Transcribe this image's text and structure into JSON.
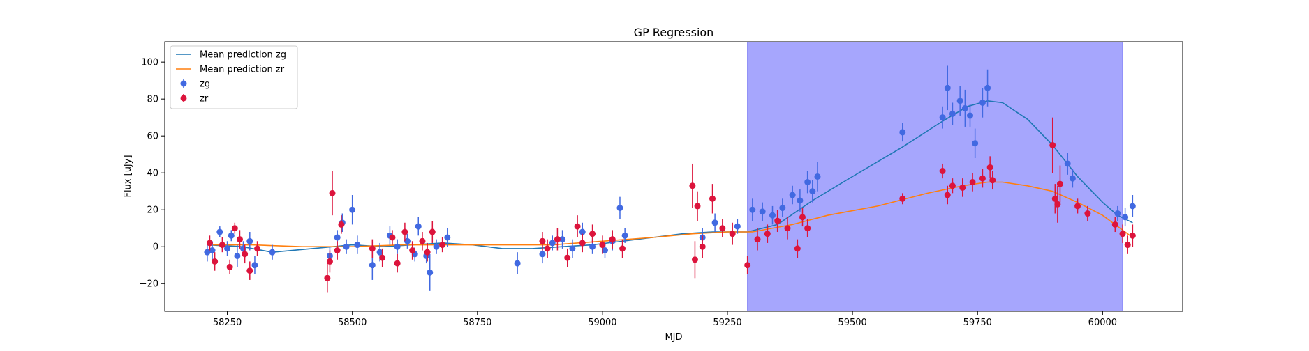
{
  "chart_data": {
    "type": "scatter",
    "title": "GP Regression",
    "xlabel": "MJD",
    "ylabel": "Flux [uJy]",
    "xlim": [
      58125,
      60160
    ],
    "ylim": [
      -35,
      111
    ],
    "xticks": [
      58250,
      58500,
      58750,
      59000,
      59250,
      59500,
      59750,
      60000
    ],
    "yticks": [
      -20,
      0,
      20,
      40,
      60,
      80,
      100
    ],
    "grid": false,
    "legend_position": "top-left",
    "colors": {
      "zg": "#4169e1",
      "zr": "#dc143c",
      "mean_zg": "#1f77b4",
      "mean_zr": "#ff7f0e",
      "shade": "#a6a6fd",
      "shade_edge": "#7b7bf5"
    },
    "shaded_region": {
      "x_start": 59290,
      "x_end": 60040
    },
    "legend": [
      {
        "label": "Mean prediction zg",
        "kind": "line",
        "color_key": "mean_zg"
      },
      {
        "label": "Mean prediction zr",
        "kind": "line",
        "color_key": "mean_zr"
      },
      {
        "label": "zg",
        "kind": "errorbar",
        "color_key": "zg"
      },
      {
        "label": "zr",
        "kind": "errorbar",
        "color_key": "zr"
      }
    ],
    "series": [
      {
        "name": "Mean prediction zg",
        "kind": "line",
        "color_key": "mean_zg",
        "points": [
          [
            58210,
            1
          ],
          [
            58280,
            0
          ],
          [
            58340,
            -3
          ],
          [
            58420,
            -1
          ],
          [
            58500,
            1
          ],
          [
            58560,
            0
          ],
          [
            58620,
            1
          ],
          [
            58680,
            2
          ],
          [
            58740,
            1
          ],
          [
            58800,
            -1
          ],
          [
            58860,
            -1
          ],
          [
            58920,
            0
          ],
          [
            58980,
            1
          ],
          [
            59040,
            3
          ],
          [
            59100,
            5
          ],
          [
            59160,
            7
          ],
          [
            59220,
            8
          ],
          [
            59290,
            8
          ],
          [
            59350,
            12
          ],
          [
            59420,
            25
          ],
          [
            59500,
            38
          ],
          [
            59600,
            54
          ],
          [
            59680,
            68
          ],
          [
            59730,
            76
          ],
          [
            59770,
            79
          ],
          [
            59800,
            78
          ],
          [
            59850,
            69
          ],
          [
            59900,
            55
          ],
          [
            59950,
            38
          ],
          [
            60000,
            24
          ],
          [
            60030,
            17
          ],
          [
            60060,
            13
          ]
        ]
      },
      {
        "name": "Mean prediction zr",
        "kind": "line",
        "color_key": "mean_zr",
        "points": [
          [
            58210,
            1
          ],
          [
            58300,
            1
          ],
          [
            58400,
            0
          ],
          [
            58500,
            0
          ],
          [
            58600,
            1
          ],
          [
            58700,
            1
          ],
          [
            58800,
            1
          ],
          [
            58900,
            1
          ],
          [
            59000,
            3
          ],
          [
            59100,
            5
          ],
          [
            59180,
            7
          ],
          [
            59250,
            8
          ],
          [
            59300,
            8
          ],
          [
            59380,
            12
          ],
          [
            59450,
            17
          ],
          [
            59550,
            22
          ],
          [
            59650,
            29
          ],
          [
            59720,
            33
          ],
          [
            59770,
            35
          ],
          [
            59800,
            35
          ],
          [
            59850,
            33
          ],
          [
            59900,
            30
          ],
          [
            59950,
            24
          ],
          [
            60000,
            17
          ],
          [
            60040,
            9
          ],
          [
            60060,
            5
          ]
        ]
      },
      {
        "name": "zg",
        "kind": "errorbar",
        "color_key": "zg",
        "points": [
          [
            58210,
            -3,
            5
          ],
          [
            58220,
            -2,
            5
          ],
          [
            58235,
            8,
            3
          ],
          [
            58250,
            -1,
            4
          ],
          [
            58258,
            6,
            3
          ],
          [
            58270,
            -5,
            6
          ],
          [
            58282,
            -1,
            4
          ],
          [
            58295,
            3,
            5
          ],
          [
            58305,
            -10,
            5
          ],
          [
            58340,
            -3,
            4
          ],
          [
            58455,
            -5,
            5
          ],
          [
            58470,
            5,
            4
          ],
          [
            58480,
            13,
            5
          ],
          [
            58488,
            0,
            4
          ],
          [
            58500,
            20,
            8
          ],
          [
            58510,
            1,
            5
          ],
          [
            58540,
            -10,
            8
          ],
          [
            58555,
            -3,
            5
          ],
          [
            58575,
            6,
            5
          ],
          [
            58590,
            0,
            4
          ],
          [
            58610,
            3,
            4
          ],
          [
            58625,
            -4,
            4
          ],
          [
            58632,
            11,
            5
          ],
          [
            58648,
            -5,
            4
          ],
          [
            58655,
            -14,
            10
          ],
          [
            58668,
            0,
            4
          ],
          [
            58690,
            5,
            5
          ],
          [
            58830,
            -9,
            6
          ],
          [
            58880,
            -4,
            5
          ],
          [
            58900,
            2,
            4
          ],
          [
            58920,
            4,
            5
          ],
          [
            58940,
            -1,
            5
          ],
          [
            58960,
            8,
            5
          ],
          [
            58980,
            0,
            4
          ],
          [
            59005,
            -2,
            4
          ],
          [
            59020,
            3,
            5
          ],
          [
            59035,
            21,
            6
          ],
          [
            59045,
            6,
            4
          ],
          [
            59200,
            5,
            5
          ],
          [
            59225,
            13,
            5
          ],
          [
            59270,
            11,
            4
          ],
          [
            59300,
            20,
            6
          ],
          [
            59320,
            19,
            5
          ],
          [
            59340,
            17,
            5
          ],
          [
            59360,
            21,
            5
          ],
          [
            59380,
            28,
            5
          ],
          [
            59395,
            25,
            6
          ],
          [
            59410,
            35,
            6
          ],
          [
            59420,
            30,
            6
          ],
          [
            59430,
            38,
            8
          ],
          [
            59600,
            62,
            5
          ],
          [
            59680,
            70,
            6
          ],
          [
            59690,
            86,
            12
          ],
          [
            59700,
            72,
            6
          ],
          [
            59715,
            79,
            8
          ],
          [
            59725,
            75,
            10
          ],
          [
            59735,
            71,
            6
          ],
          [
            59745,
            56,
            8
          ],
          [
            59760,
            78,
            8
          ],
          [
            59770,
            86,
            10
          ],
          [
            59930,
            45,
            6
          ],
          [
            59940,
            37,
            5
          ],
          [
            60030,
            18,
            4
          ],
          [
            60045,
            16,
            5
          ],
          [
            60060,
            22,
            6
          ]
        ]
      },
      {
        "name": "zr",
        "kind": "errorbar",
        "color_key": "zr",
        "points": [
          [
            58215,
            2,
            4
          ],
          [
            58225,
            -8,
            5
          ],
          [
            58240,
            1,
            4
          ],
          [
            58255,
            -11,
            4
          ],
          [
            58265,
            10,
            3
          ],
          [
            58275,
            4,
            5
          ],
          [
            58285,
            -4,
            5
          ],
          [
            58295,
            -13,
            5
          ],
          [
            58310,
            -1,
            4
          ],
          [
            58450,
            -17,
            8
          ],
          [
            58455,
            -8,
            6
          ],
          [
            58460,
            29,
            12
          ],
          [
            58470,
            -2,
            5
          ],
          [
            58478,
            12,
            5
          ],
          [
            58540,
            -1,
            5
          ],
          [
            58560,
            -6,
            5
          ],
          [
            58580,
            5,
            4
          ],
          [
            58590,
            -9,
            5
          ],
          [
            58605,
            8,
            5
          ],
          [
            58620,
            -2,
            5
          ],
          [
            58640,
            3,
            5
          ],
          [
            58650,
            -3,
            5
          ],
          [
            58660,
            8,
            6
          ],
          [
            58680,
            1,
            4
          ],
          [
            58880,
            3,
            5
          ],
          [
            58890,
            -1,
            5
          ],
          [
            58910,
            4,
            6
          ],
          [
            58930,
            -6,
            5
          ],
          [
            58950,
            11,
            6
          ],
          [
            58960,
            2,
            5
          ],
          [
            58980,
            7,
            5
          ],
          [
            59000,
            1,
            5
          ],
          [
            59020,
            4,
            5
          ],
          [
            59040,
            -1,
            5
          ],
          [
            59180,
            33,
            12
          ],
          [
            59185,
            -7,
            10
          ],
          [
            59190,
            22,
            8
          ],
          [
            59200,
            0,
            6
          ],
          [
            59220,
            26,
            8
          ],
          [
            59240,
            10,
            5
          ],
          [
            59260,
            7,
            6
          ],
          [
            59290,
            -10,
            5
          ],
          [
            59310,
            4,
            6
          ],
          [
            59330,
            7,
            5
          ],
          [
            59350,
            14,
            6
          ],
          [
            59370,
            10,
            6
          ],
          [
            59390,
            -1,
            5
          ],
          [
            59400,
            16,
            5
          ],
          [
            59410,
            10,
            5
          ],
          [
            59600,
            26,
            3
          ],
          [
            59680,
            41,
            4
          ],
          [
            59690,
            28,
            5
          ],
          [
            59700,
            33,
            4
          ],
          [
            59720,
            32,
            5
          ],
          [
            59740,
            35,
            5
          ],
          [
            59760,
            37,
            5
          ],
          [
            59775,
            43,
            6
          ],
          [
            59780,
            36,
            5
          ],
          [
            59900,
            55,
            15
          ],
          [
            59905,
            26,
            8
          ],
          [
            59910,
            23,
            10
          ],
          [
            59915,
            34,
            10
          ],
          [
            59950,
            22,
            4
          ],
          [
            59970,
            18,
            4
          ],
          [
            60025,
            12,
            4
          ],
          [
            60040,
            7,
            5
          ],
          [
            60050,
            1,
            5
          ],
          [
            60060,
            6,
            6
          ]
        ]
      }
    ]
  }
}
